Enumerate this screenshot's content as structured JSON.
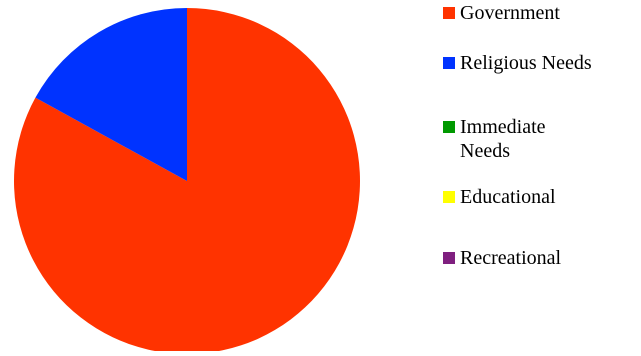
{
  "chart_data": {
    "type": "pie",
    "title": "",
    "categories": [
      "Government",
      "Religious Needs",
      "Immediate Needs",
      "Educational",
      "Recreational"
    ],
    "values": [
      83,
      17,
      0,
      0,
      0
    ],
    "colors": [
      "#ff3300",
      "#0033ff",
      "#009900",
      "#ffff00",
      "#7f1f7f"
    ],
    "legend": {
      "position": "right",
      "entries": [
        {
          "lines": [
            "Government"
          ]
        },
        {
          "lines": [
            "Religious Needs"
          ]
        },
        {
          "lines": [
            "Immediate",
            "Needs"
          ]
        },
        {
          "lines": [
            "Educational"
          ]
        },
        {
          "lines": [
            "Recreational"
          ]
        }
      ]
    }
  }
}
